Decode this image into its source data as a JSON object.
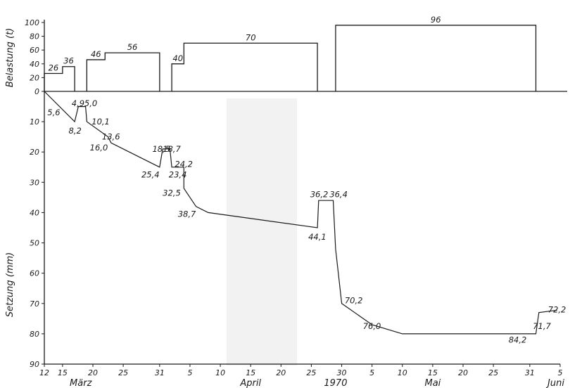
{
  "chart_data": {
    "type": "line",
    "top_panel": {
      "ylabel": "Belastung (t)",
      "yticks": [
        "100",
        "80",
        "60",
        "40",
        "20",
        "0"
      ],
      "ylim": [
        0,
        100
      ],
      "load_steps": [
        {
          "x0": 12,
          "x1": 15,
          "value": 26,
          "label": "26"
        },
        {
          "x0": 15,
          "x1": 17,
          "value": 36,
          "label": "36"
        },
        {
          "x0": 19,
          "x1": 22,
          "value": 46,
          "label": "46"
        },
        {
          "x0": 22,
          "x1": 31,
          "value": 56,
          "label": "56"
        },
        {
          "x0": 33,
          "x1": 35,
          "value": 40,
          "label": "40"
        },
        {
          "x0": 35,
          "x1": 57,
          "value": 70,
          "label": "70"
        },
        {
          "x0": 60,
          "x1": 93,
          "value": 96,
          "label": "96"
        }
      ]
    },
    "bottom_panel": {
      "ylabel": "Setzung (mm)",
      "yticks": [
        "0",
        "10",
        "20",
        "30",
        "40",
        "50",
        "60",
        "70",
        "80",
        "90"
      ],
      "ylim": [
        0,
        90
      ],
      "series": [
        {
          "points": [
            [
              12,
              0
            ],
            [
              17,
              10
            ],
            [
              17.6,
              5
            ],
            [
              18.8,
              5
            ],
            [
              19,
              10
            ],
            [
              22.5,
              15
            ],
            [
              23,
              17
            ],
            [
              31,
              25
            ],
            [
              31.5,
              19
            ],
            [
              32.7,
              19
            ],
            [
              33,
              25
            ],
            [
              35,
              25
            ],
            [
              35,
              32
            ],
            [
              37,
              38
            ],
            [
              39,
              40
            ],
            [
              57,
              45
            ],
            [
              57.2,
              36
            ],
            [
              59.6,
              36
            ],
            [
              60,
              52
            ],
            [
              61,
              70
            ],
            [
              66,
              77
            ],
            [
              71,
              80
            ],
            [
              93,
              80
            ],
            [
              93.5,
              73
            ],
            [
              96.5,
              72.2
            ]
          ]
        }
      ],
      "point_labels": [
        {
          "x": 12.5,
          "y": 7,
          "text": "5,6"
        },
        {
          "x": 16,
          "y": 13,
          "text": "8,2"
        },
        {
          "x": 16.5,
          "y": 4,
          "text": "4,9"
        },
        {
          "x": 18.6,
          "y": 4,
          "text": "5,0"
        },
        {
          "x": 19.8,
          "y": 10,
          "text": "10,1"
        },
        {
          "x": 21.5,
          "y": 15,
          "text": "13,6"
        },
        {
          "x": 19.5,
          "y": 18.5,
          "text": "16,0"
        },
        {
          "x": 28,
          "y": 27.5,
          "text": "25,4"
        },
        {
          "x": 29.8,
          "y": 19,
          "text": "18,5"
        },
        {
          "x": 31.5,
          "y": 19,
          "text": "18,7"
        },
        {
          "x": 32.5,
          "y": 27.5,
          "text": "23,4"
        },
        {
          "x": 33.5,
          "y": 24,
          "text": "24,2"
        },
        {
          "x": 31.5,
          "y": 33.5,
          "text": "32,5"
        },
        {
          "x": 34,
          "y": 40.5,
          "text": "38,7"
        },
        {
          "x": 55.5,
          "y": 48,
          "text": "44,1"
        },
        {
          "x": 55.8,
          "y": 34,
          "text": "36,2"
        },
        {
          "x": 59,
          "y": 34,
          "text": "36,4"
        },
        {
          "x": 61.5,
          "y": 69,
          "text": "70,2"
        },
        {
          "x": 64.5,
          "y": 77.5,
          "text": "76,0"
        },
        {
          "x": 88.5,
          "y": 82,
          "text": "84,2"
        },
        {
          "x": 92.5,
          "y": 77.5,
          "text": "71,7"
        },
        {
          "x": 95,
          "y": 72,
          "text": "72,2"
        }
      ]
    },
    "xaxis": {
      "ticks": [
        {
          "x": 12,
          "label": "12"
        },
        {
          "x": 15,
          "label": "15"
        },
        {
          "x": 20,
          "label": "20"
        },
        {
          "x": 25,
          "label": "25"
        },
        {
          "x": 31,
          "label": "31"
        },
        {
          "x": 36,
          "label": "5"
        },
        {
          "x": 41,
          "label": "10"
        },
        {
          "x": 46,
          "label": "15"
        },
        {
          "x": 51,
          "label": "20"
        },
        {
          "x": 56,
          "label": "25"
        },
        {
          "x": 61,
          "label": "30"
        },
        {
          "x": 66,
          "label": "5"
        },
        {
          "x": 71,
          "label": "10"
        },
        {
          "x": 76,
          "label": "15"
        },
        {
          "x": 81,
          "label": "20"
        },
        {
          "x": 86,
          "label": "25"
        },
        {
          "x": 92,
          "label": "31"
        },
        {
          "x": 97,
          "label": "5"
        }
      ],
      "month_labels": [
        {
          "x": 18,
          "text": "März"
        },
        {
          "x": 46,
          "text": "April"
        },
        {
          "x": 60,
          "text": "1970"
        },
        {
          "x": 76,
          "text": "Mai"
        },
        {
          "x": 97,
          "text": "Juni"
        }
      ],
      "xlim": [
        12,
        97
      ]
    },
    "colors": {
      "ink": "#1a1a1a",
      "paper": "#ffffff",
      "shade": "#e6e6e6"
    }
  }
}
